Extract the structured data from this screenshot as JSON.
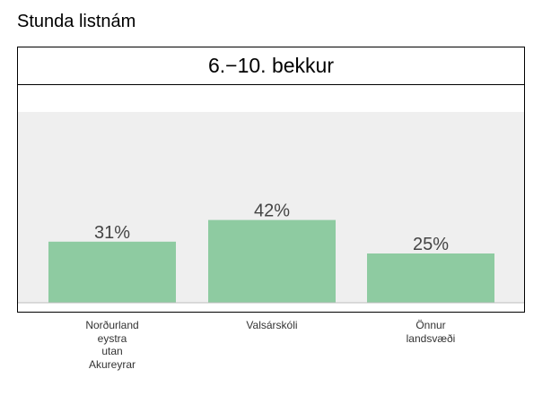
{
  "title": "Stunda listnám",
  "panel": {
    "header": "6.−10. bekkur"
  },
  "colors": {
    "bar": "#8ecba1",
    "plot_background": "#efefef",
    "baseline": "#bdbdbd",
    "value_label": "#444444"
  },
  "chart_data": {
    "type": "bar",
    "title": "6.−10. bekkur",
    "categories": [
      "Norðurland eystra utan Akureyrar",
      "Valsárskóli",
      "Önnur landsvæði"
    ],
    "category_label_lines": [
      [
        "Norðurland",
        "eystra",
        "utan",
        "Akureyrar"
      ],
      [
        "Valsárskóli"
      ],
      [
        "Önnur",
        "landsvæði"
      ]
    ],
    "values": [
      31,
      42,
      25
    ],
    "value_labels": [
      "31%",
      "42%",
      "25%"
    ],
    "ylim": [
      0,
      100
    ],
    "xlabel": "",
    "ylabel": "",
    "grid": false,
    "legend": "none"
  }
}
